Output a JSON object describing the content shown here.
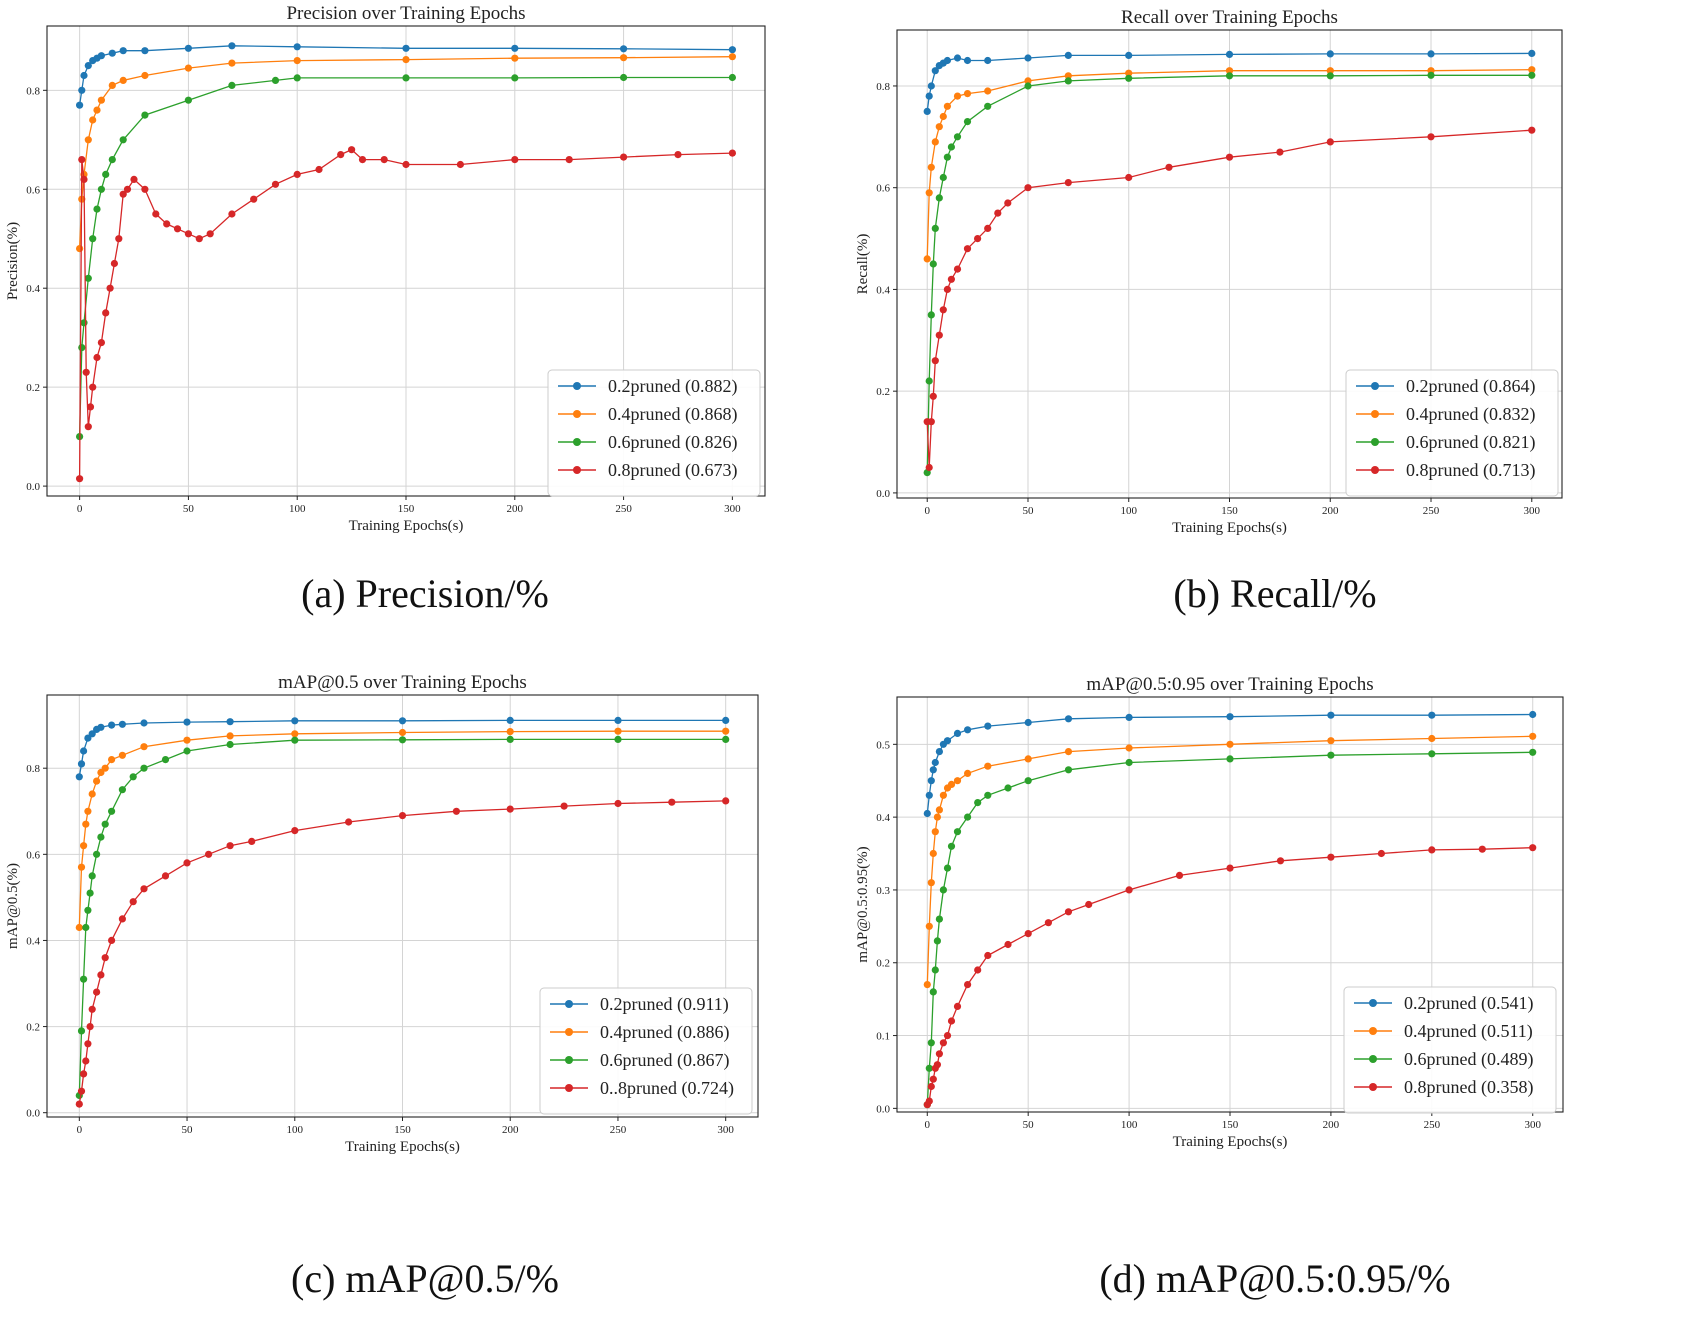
{
  "captions": [
    "(a) Precision/%",
    "(b) Recall/%",
    "(c) mAP@0.5/%",
    "(d) mAP@0.5:0.95/%"
  ],
  "colors": {
    "s02": "#1f77b4",
    "s04": "#ff7f0e",
    "s06": "#2ca02c",
    "s08": "#d62728",
    "grid": "#d4d4d4"
  },
  "chart_data": [
    {
      "type": "line",
      "title": "Precision over Training Epochs",
      "xlabel": "Training Epochs(s)",
      "ylabel": "Precision(%)",
      "xlim": [
        -15,
        315
      ],
      "ylim": [
        -0.02,
        0.93
      ],
      "xticks": [
        0,
        50,
        100,
        150,
        200,
        250,
        300
      ],
      "xtick_labels": [
        "0",
        "50",
        "100",
        "150",
        "200",
        "250",
        "300"
      ],
      "yticks": [
        0.0,
        0.2,
        0.4,
        0.6,
        0.8
      ],
      "ytick_labels": [
        "0.0",
        "0.2",
        "0.4",
        "0.6",
        "0.8"
      ],
      "legend_position": "bottom-right",
      "series": [
        {
          "name": "0.2pruned (0.882)",
          "x": [
            0,
            1,
            2,
            4,
            6,
            8,
            10,
            15,
            20,
            30,
            50,
            70,
            100,
            150,
            200,
            250,
            300
          ],
          "y": [
            0.77,
            0.8,
            0.83,
            0.85,
            0.86,
            0.865,
            0.87,
            0.875,
            0.88,
            0.88,
            0.885,
            0.89,
            0.888,
            0.885,
            0.885,
            0.884,
            0.882
          ]
        },
        {
          "name": "0.4pruned (0.868)",
          "x": [
            0,
            1,
            2,
            4,
            6,
            8,
            10,
            15,
            20,
            30,
            50,
            70,
            100,
            150,
            200,
            250,
            300
          ],
          "y": [
            0.48,
            0.58,
            0.63,
            0.7,
            0.74,
            0.76,
            0.78,
            0.81,
            0.82,
            0.83,
            0.845,
            0.855,
            0.86,
            0.862,
            0.865,
            0.866,
            0.868
          ]
        },
        {
          "name": "0.6pruned (0.826)",
          "x": [
            0,
            1,
            2,
            4,
            6,
            8,
            10,
            12,
            15,
            20,
            30,
            50,
            70,
            90,
            100,
            150,
            200,
            250,
            300
          ],
          "y": [
            0.1,
            0.28,
            0.33,
            0.42,
            0.5,
            0.56,
            0.6,
            0.63,
            0.66,
            0.7,
            0.75,
            0.78,
            0.81,
            0.82,
            0.825,
            0.825,
            0.825,
            0.826,
            0.826
          ]
        },
        {
          "name": "0.8pruned (0.673)",
          "x": [
            0,
            1,
            2,
            3,
            4,
            5,
            6,
            8,
            10,
            12,
            14,
            16,
            18,
            20,
            22,
            25,
            30,
            35,
            40,
            45,
            50,
            55,
            60,
            70,
            80,
            90,
            100,
            110,
            120,
            125,
            130,
            140,
            150,
            175,
            200,
            225,
            250,
            275,
            300
          ],
          "y": [
            0.015,
            0.66,
            0.62,
            0.23,
            0.12,
            0.16,
            0.2,
            0.26,
            0.29,
            0.35,
            0.4,
            0.45,
            0.5,
            0.59,
            0.6,
            0.62,
            0.6,
            0.55,
            0.53,
            0.52,
            0.51,
            0.5,
            0.51,
            0.55,
            0.58,
            0.61,
            0.63,
            0.64,
            0.67,
            0.68,
            0.66,
            0.66,
            0.65,
            0.65,
            0.66,
            0.66,
            0.665,
            0.67,
            0.673
          ]
        }
      ]
    },
    {
      "type": "line",
      "title": "Recall over Training Epochs",
      "xlabel": "Training Epochs(s)",
      "ylabel": "Recall(%)",
      "xlim": [
        -15,
        315
      ],
      "ylim": [
        -0.01,
        0.91
      ],
      "xticks": [
        0,
        50,
        100,
        150,
        200,
        250,
        300
      ],
      "xtick_labels": [
        "0",
        "50",
        "100",
        "150",
        "200",
        "250",
        "300"
      ],
      "yticks": [
        0.0,
        0.2,
        0.4,
        0.6,
        0.8
      ],
      "ytick_labels": [
        "0.0",
        "0.2",
        "0.4",
        "0.6",
        "0.8"
      ],
      "legend_position": "bottom-right",
      "series": [
        {
          "name": "0.2pruned (0.864)",
          "x": [
            0,
            1,
            2,
            4,
            6,
            8,
            10,
            15,
            20,
            30,
            50,
            70,
            100,
            150,
            200,
            250,
            300
          ],
          "y": [
            0.75,
            0.78,
            0.8,
            0.83,
            0.84,
            0.845,
            0.85,
            0.855,
            0.85,
            0.85,
            0.855,
            0.86,
            0.86,
            0.862,
            0.863,
            0.863,
            0.864
          ]
        },
        {
          "name": "0.4pruned (0.832)",
          "x": [
            0,
            1,
            2,
            4,
            6,
            8,
            10,
            15,
            20,
            30,
            50,
            70,
            100,
            150,
            200,
            250,
            300
          ],
          "y": [
            0.46,
            0.59,
            0.64,
            0.69,
            0.72,
            0.74,
            0.76,
            0.78,
            0.785,
            0.79,
            0.81,
            0.82,
            0.825,
            0.83,
            0.83,
            0.83,
            0.832
          ]
        },
        {
          "name": "0.6pruned (0.821)",
          "x": [
            0,
            1,
            2,
            3,
            4,
            6,
            8,
            10,
            12,
            15,
            20,
            30,
            50,
            70,
            100,
            150,
            200,
            250,
            300
          ],
          "y": [
            0.04,
            0.22,
            0.35,
            0.45,
            0.52,
            0.58,
            0.62,
            0.66,
            0.68,
            0.7,
            0.73,
            0.76,
            0.8,
            0.81,
            0.815,
            0.82,
            0.82,
            0.821,
            0.821
          ]
        },
        {
          "name": "0.8pruned (0.713)",
          "x": [
            0,
            1,
            2,
            3,
            4,
            6,
            8,
            10,
            12,
            15,
            20,
            25,
            30,
            35,
            40,
            50,
            70,
            100,
            120,
            150,
            175,
            200,
            250,
            300
          ],
          "y": [
            0.14,
            0.05,
            0.14,
            0.19,
            0.26,
            0.31,
            0.36,
            0.4,
            0.42,
            0.44,
            0.48,
            0.5,
            0.52,
            0.55,
            0.57,
            0.6,
            0.61,
            0.62,
            0.64,
            0.66,
            0.67,
            0.69,
            0.7,
            0.713
          ]
        }
      ]
    },
    {
      "type": "line",
      "title": "mAP@0.5 over Training Epochs",
      "xlabel": "Training Epochs(s)",
      "ylabel": "mAP@0.5(%)",
      "xlim": [
        -15,
        315
      ],
      "ylim": [
        -0.01,
        0.97
      ],
      "xticks": [
        0,
        50,
        100,
        150,
        200,
        250,
        300
      ],
      "xtick_labels": [
        "0",
        "50",
        "100",
        "150",
        "200",
        "250",
        "300"
      ],
      "yticks": [
        0.0,
        0.2,
        0.4,
        0.6,
        0.8
      ],
      "ytick_labels": [
        "0.0",
        "0.2",
        "0.4",
        "0.6",
        "0.8"
      ],
      "legend_position": "bottom-right",
      "series": [
        {
          "name": "0.2pruned (0.911)",
          "x": [
            0,
            1,
            2,
            4,
            6,
            8,
            10,
            15,
            20,
            30,
            50,
            70,
            100,
            150,
            200,
            250,
            300
          ],
          "y": [
            0.78,
            0.81,
            0.84,
            0.87,
            0.88,
            0.89,
            0.895,
            0.9,
            0.902,
            0.905,
            0.907,
            0.908,
            0.91,
            0.91,
            0.911,
            0.911,
            0.911
          ]
        },
        {
          "name": "0.4pruned (0.886)",
          "x": [
            0,
            1,
            2,
            3,
            4,
            6,
            8,
            10,
            12,
            15,
            20,
            30,
            50,
            70,
            100,
            150,
            200,
            250,
            300
          ],
          "y": [
            0.43,
            0.57,
            0.62,
            0.67,
            0.7,
            0.74,
            0.77,
            0.79,
            0.8,
            0.82,
            0.83,
            0.85,
            0.865,
            0.875,
            0.88,
            0.883,
            0.885,
            0.886,
            0.886
          ]
        },
        {
          "name": "0.6pruned (0.867)",
          "x": [
            0,
            1,
            2,
            3,
            4,
            5,
            6,
            8,
            10,
            12,
            15,
            20,
            25,
            30,
            40,
            50,
            70,
            100,
            150,
            200,
            250,
            300
          ],
          "y": [
            0.04,
            0.19,
            0.31,
            0.43,
            0.47,
            0.51,
            0.55,
            0.6,
            0.64,
            0.67,
            0.7,
            0.75,
            0.78,
            0.8,
            0.82,
            0.84,
            0.855,
            0.865,
            0.866,
            0.867,
            0.867,
            0.867
          ]
        },
        {
          "name": "0..8pruned (0.724)",
          "x": [
            0,
            1,
            2,
            3,
            4,
            5,
            6,
            8,
            10,
            12,
            15,
            20,
            25,
            30,
            40,
            50,
            60,
            70,
            80,
            100,
            125,
            150,
            175,
            200,
            225,
            250,
            275,
            300
          ],
          "y": [
            0.02,
            0.05,
            0.09,
            0.12,
            0.16,
            0.2,
            0.24,
            0.28,
            0.32,
            0.36,
            0.4,
            0.45,
            0.49,
            0.52,
            0.55,
            0.58,
            0.6,
            0.62,
            0.63,
            0.655,
            0.675,
            0.69,
            0.7,
            0.705,
            0.712,
            0.718,
            0.721,
            0.724
          ]
        }
      ]
    },
    {
      "type": "line",
      "title": "mAP@0.5:0.95 over Training Epochs",
      "xlabel": "Training Epochs(s)",
      "ylabel": "mAP@0.5:0.95(%)",
      "xlim": [
        -15,
        315
      ],
      "ylim": [
        -0.005,
        0.565
      ],
      "xticks": [
        0,
        50,
        100,
        150,
        200,
        250,
        300
      ],
      "xtick_labels": [
        "0",
        "50",
        "100",
        "150",
        "200",
        "250",
        "300"
      ],
      "yticks": [
        0.0,
        0.1,
        0.2,
        0.3,
        0.4,
        0.5
      ],
      "ytick_labels": [
        "0.0",
        "0.1",
        "0.2",
        "0.3",
        "0.4",
        "0.5"
      ],
      "legend_position": "bottom-right",
      "series": [
        {
          "name": "0.2pruned (0.541)",
          "x": [
            0,
            1,
            2,
            3,
            4,
            6,
            8,
            10,
            15,
            20,
            30,
            50,
            70,
            100,
            150,
            200,
            250,
            300
          ],
          "y": [
            0.405,
            0.43,
            0.45,
            0.465,
            0.475,
            0.49,
            0.5,
            0.505,
            0.515,
            0.52,
            0.525,
            0.53,
            0.535,
            0.537,
            0.538,
            0.54,
            0.54,
            0.541
          ]
        },
        {
          "name": "0.4pruned (0.511)",
          "x": [
            0,
            1,
            2,
            3,
            4,
            5,
            6,
            8,
            10,
            12,
            15,
            20,
            30,
            50,
            70,
            100,
            150,
            200,
            250,
            300
          ],
          "y": [
            0.17,
            0.25,
            0.31,
            0.35,
            0.38,
            0.4,
            0.41,
            0.43,
            0.44,
            0.445,
            0.45,
            0.46,
            0.47,
            0.48,
            0.49,
            0.495,
            0.5,
            0.505,
            0.508,
            0.511
          ]
        },
        {
          "name": "0.6pruned (0.489)",
          "x": [
            0,
            1,
            2,
            3,
            4,
            5,
            6,
            8,
            10,
            12,
            15,
            20,
            25,
            30,
            40,
            50,
            70,
            100,
            150,
            200,
            250,
            300
          ],
          "y": [
            0.005,
            0.055,
            0.09,
            0.16,
            0.19,
            0.23,
            0.26,
            0.3,
            0.33,
            0.36,
            0.38,
            0.4,
            0.42,
            0.43,
            0.44,
            0.45,
            0.465,
            0.475,
            0.48,
            0.485,
            0.487,
            0.489
          ]
        },
        {
          "name": "0.8pruned (0.358)",
          "x": [
            0,
            1,
            2,
            3,
            4,
            5,
            6,
            8,
            10,
            12,
            15,
            20,
            25,
            30,
            40,
            50,
            60,
            70,
            80,
            100,
            125,
            150,
            175,
            200,
            225,
            250,
            275,
            300
          ],
          "y": [
            0.005,
            0.01,
            0.03,
            0.04,
            0.055,
            0.06,
            0.075,
            0.09,
            0.1,
            0.12,
            0.14,
            0.17,
            0.19,
            0.21,
            0.225,
            0.24,
            0.255,
            0.27,
            0.28,
            0.3,
            0.32,
            0.33,
            0.34,
            0.345,
            0.35,
            0.355,
            0.356,
            0.358
          ]
        }
      ]
    }
  ]
}
